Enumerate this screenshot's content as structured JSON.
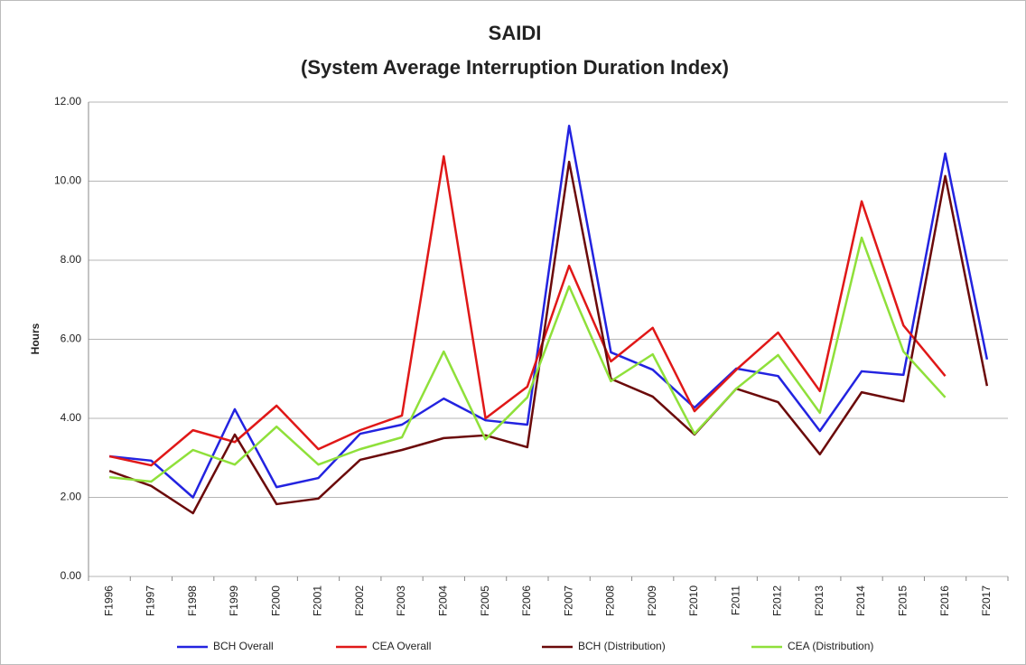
{
  "chart_data": {
    "type": "line",
    "title": "SAIDI",
    "subtitle": "(System Average Interruption Duration Index)",
    "y_label": "Hours",
    "categories": [
      "F1996",
      "F1997",
      "F1998",
      "F1999",
      "F2000",
      "F2001",
      "F2002",
      "F2003",
      "F2004",
      "F2005",
      "F2006",
      "F2007",
      "F2008",
      "F2009",
      "F2010",
      "F2011",
      "F2012",
      "F2013",
      "F2014",
      "F2015",
      "F2016",
      "F2017"
    ],
    "series": [
      {
        "name": "BCH Overall",
        "color": "#2323e0",
        "values": [
          3.04,
          2.93,
          2.0,
          4.23,
          2.26,
          2.49,
          3.61,
          3.84,
          4.5,
          3.95,
          3.84,
          11.4,
          5.67,
          5.23,
          4.27,
          5.26,
          5.07,
          3.68,
          5.19,
          5.1,
          10.7,
          5.49
        ]
      },
      {
        "name": "CEA Overall",
        "color": "#e01818",
        "values": [
          3.04,
          2.81,
          3.7,
          3.4,
          4.32,
          3.22,
          3.7,
          4.07,
          10.63,
          4.0,
          4.8,
          7.86,
          5.44,
          6.29,
          4.18,
          5.23,
          6.17,
          4.69,
          9.49,
          6.35,
          5.07,
          null
        ]
      },
      {
        "name": "BCH (Distribution)",
        "color": "#6b0a0a",
        "values": [
          2.67,
          2.29,
          1.6,
          3.59,
          1.83,
          1.97,
          2.95,
          3.2,
          3.5,
          3.57,
          3.27,
          10.49,
          5.0,
          4.55,
          3.59,
          4.75,
          4.41,
          3.09,
          4.66,
          4.43,
          10.13,
          4.82
        ]
      },
      {
        "name": "CEA (Distribution)",
        "color": "#8fe03a",
        "values": [
          2.51,
          2.4,
          3.2,
          2.83,
          3.79,
          2.83,
          3.22,
          3.52,
          5.69,
          3.47,
          4.53,
          7.34,
          4.94,
          5.62,
          3.61,
          4.75,
          5.6,
          4.14,
          8.57,
          5.69,
          4.53,
          null
        ]
      }
    ],
    "ylim": [
      0,
      12
    ],
    "yticks": [
      {
        "value": 0,
        "label": "0.00"
      },
      {
        "value": 2,
        "label": "2.00"
      },
      {
        "value": 4,
        "label": "4.00"
      },
      {
        "value": 6,
        "label": "6.00"
      },
      {
        "value": 8,
        "label": "8.00"
      },
      {
        "value": 10,
        "label": "10.00"
      },
      {
        "value": 12,
        "label": "12.00"
      }
    ],
    "grid": true,
    "legend": "bottom"
  }
}
